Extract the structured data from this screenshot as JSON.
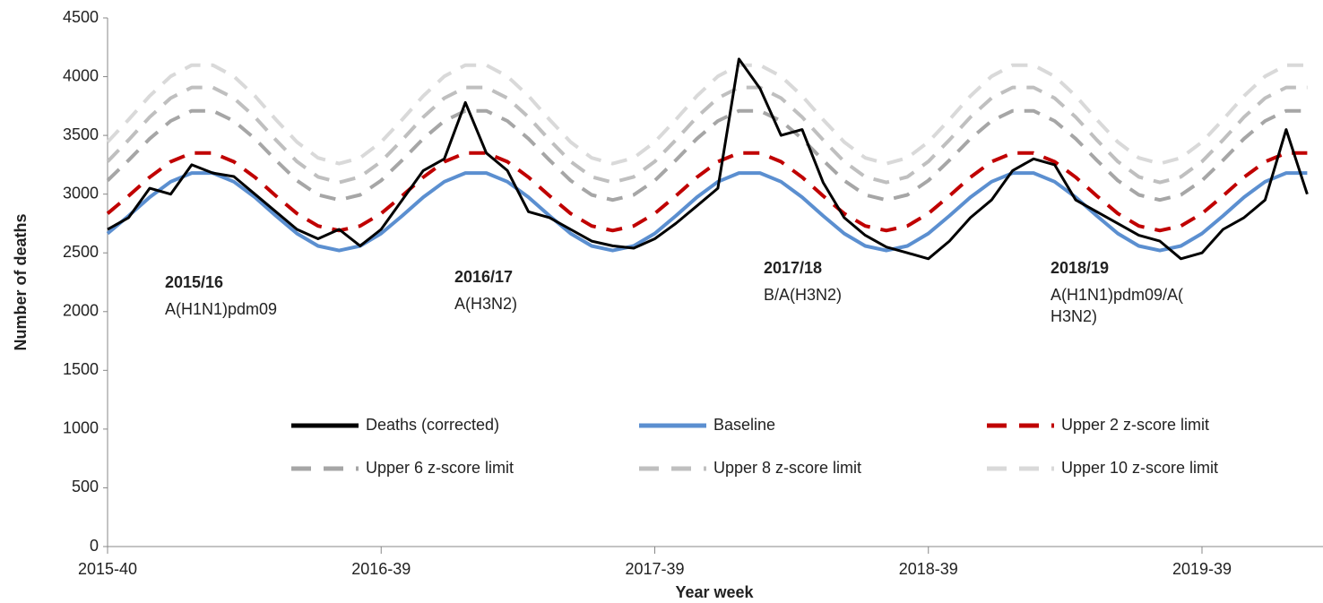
{
  "chart_data": {
    "type": "line",
    "ylabel": "Number of deaths",
    "xlabel": "Year week",
    "x": [
      0,
      4,
      8,
      12,
      16,
      20,
      24,
      28,
      32,
      36,
      40,
      44,
      48,
      52,
      56,
      60,
      64,
      68,
      72,
      76,
      80,
      84,
      88,
      92,
      96,
      100,
      104,
      108,
      112,
      116,
      120,
      124,
      128,
      132,
      136,
      140,
      144,
      148,
      152,
      156,
      160,
      164,
      168,
      172,
      176,
      180,
      184,
      188,
      192,
      196,
      200,
      204,
      208,
      212,
      216,
      220,
      224,
      228
    ],
    "xlim": [
      0,
      231
    ],
    "xticks": [
      {
        "value": 0,
        "label": "2015-40"
      },
      {
        "value": 52,
        "label": "2016-39"
      },
      {
        "value": 104,
        "label": "2017-39"
      },
      {
        "value": 156,
        "label": "2018-39"
      },
      {
        "value": 208,
        "label": "2019-39"
      }
    ],
    "ylim": [
      0,
      4500
    ],
    "yticks": [
      0,
      500,
      1000,
      1500,
      2000,
      2500,
      3000,
      3500,
      4000,
      4500
    ],
    "series": [
      {
        "name": "Deaths (corrected)",
        "color": "#000000",
        "dashed": false,
        "values": [
          2700,
          2800,
          3050,
          3000,
          3250,
          3180,
          3150,
          3000,
          2850,
          2700,
          2620,
          2700,
          2560,
          2700,
          2950,
          3200,
          3300,
          3780,
          3350,
          3200,
          2850,
          2800,
          2700,
          2600,
          2560,
          2540,
          2620,
          2750,
          2900,
          3050,
          4150,
          3900,
          3500,
          3550,
          3100,
          2800,
          2650,
          2550,
          2500,
          2450,
          2600,
          2800,
          2950,
          3200,
          3300,
          3250,
          2950,
          2850,
          2750,
          2650,
          2600,
          2450,
          2500,
          2700,
          2800,
          2950,
          3550,
          3000
        ]
      },
      {
        "name": "Baseline",
        "color": "#5b8fd0",
        "dashed": false,
        "values": [
          2665,
          2815,
          2974,
          3106,
          3180,
          3180,
          3106,
          2974,
          2815,
          2665,
          2559,
          2520,
          2559,
          2665,
          2815,
          2974,
          3106,
          3180,
          3180,
          3106,
          2974,
          2815,
          2665,
          2559,
          2520,
          2559,
          2665,
          2815,
          2974,
          3106,
          3180,
          3180,
          3106,
          2974,
          2815,
          2665,
          2559,
          2520,
          2559,
          2665,
          2815,
          2974,
          3106,
          3180,
          3180,
          3106,
          2974,
          2815,
          2665,
          2559,
          2520,
          2559,
          2665,
          2815,
          2974,
          3106,
          3180,
          3180
        ]
      },
      {
        "name": "Upper 2 z-score limit",
        "color": "#c00000",
        "dashed": true,
        "values": [
          2835,
          2985,
          3144,
          3276,
          3350,
          3350,
          3276,
          3144,
          2985,
          2835,
          2729,
          2690,
          2729,
          2835,
          2985,
          3144,
          3276,
          3350,
          3350,
          3276,
          3144,
          2985,
          2835,
          2729,
          2690,
          2729,
          2835,
          2985,
          3144,
          3276,
          3350,
          3350,
          3276,
          3144,
          2985,
          2835,
          2729,
          2690,
          2729,
          2835,
          2985,
          3144,
          3276,
          3350,
          3350,
          3276,
          3144,
          2985,
          2835,
          2729,
          2690,
          2729,
          2835,
          2985,
          3144,
          3276,
          3350,
          3350
        ]
      },
      {
        "name": "Upper 6 z-score limit",
        "color": "#a6a6a6",
        "dashed": true,
        "values": [
          3116,
          3289,
          3472,
          3623,
          3709,
          3709,
          3623,
          3472,
          3289,
          3116,
          2994,
          2950,
          2994,
          3116,
          3289,
          3472,
          3623,
          3709,
          3709,
          3623,
          3472,
          3289,
          3116,
          2994,
          2950,
          2994,
          3116,
          3289,
          3472,
          3623,
          3709,
          3709,
          3623,
          3472,
          3289,
          3116,
          2994,
          2950,
          2994,
          3116,
          3289,
          3472,
          3623,
          3709,
          3709,
          3623,
          3472,
          3289,
          3116,
          2994,
          2950,
          2994,
          3116,
          3289,
          3472,
          3623,
          3709,
          3709
        ]
      },
      {
        "name": "Upper 8 z-score limit",
        "color": "#bfbfbf",
        "dashed": true,
        "values": [
          3277,
          3461,
          3656,
          3817,
          3908,
          3908,
          3817,
          3656,
          3461,
          3277,
          3147,
          3100,
          3147,
          3277,
          3461,
          3656,
          3817,
          3908,
          3908,
          3817,
          3656,
          3461,
          3277,
          3147,
          3100,
          3147,
          3277,
          3461,
          3656,
          3817,
          3908,
          3908,
          3817,
          3656,
          3461,
          3277,
          3147,
          3100,
          3147,
          3277,
          3461,
          3656,
          3817,
          3908,
          3908,
          3817,
          3656,
          3461,
          3277,
          3147,
          3100,
          3147,
          3277,
          3461,
          3656,
          3817,
          3908,
          3908
        ]
      },
      {
        "name": "Upper 10 z-score limit",
        "color": "#d9d9d9",
        "dashed": true,
        "values": [
          3444,
          3634,
          3836,
          4003,
          4098,
          4098,
          4003,
          3836,
          3634,
          3444,
          3309,
          3260,
          3309,
          3444,
          3634,
          3836,
          4003,
          4098,
          4098,
          4003,
          3836,
          3634,
          3444,
          3309,
          3260,
          3309,
          3444,
          3634,
          3836,
          4003,
          4098,
          4098,
          4003,
          3836,
          3634,
          3444,
          3309,
          3260,
          3309,
          3444,
          3634,
          3836,
          4003,
          4098,
          4098,
          4003,
          3836,
          3634,
          3444,
          3309,
          3260,
          3309,
          3444,
          3634,
          3836,
          4003,
          4098,
          4098
        ]
      }
    ],
    "annotations": [
      {
        "season": "2015/16",
        "strain": [
          "A(H1N1)pdm09"
        ]
      },
      {
        "season": "2016/17",
        "strain": [
          "A(H3N2)"
        ]
      },
      {
        "season": "2017/18",
        "strain": [
          "B/A(H3N2)"
        ]
      },
      {
        "season": "2018/19",
        "strain": [
          "A(H1N1)pdm09/A(",
          "H3N2)"
        ]
      }
    ]
  }
}
